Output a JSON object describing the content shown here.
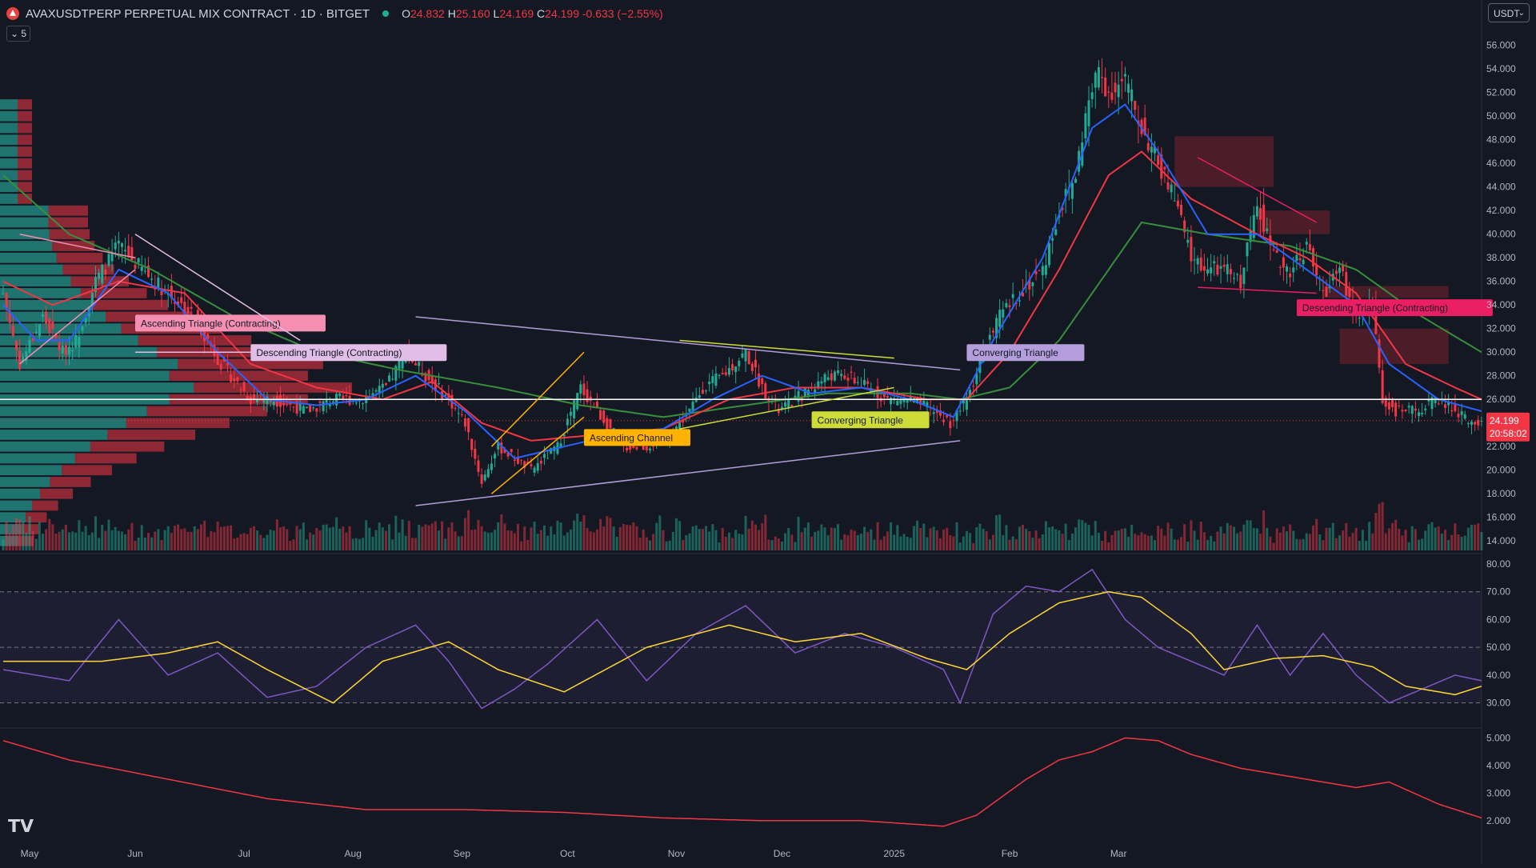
{
  "header": {
    "symbol": "AVAXUSDTPERP PERPETUAL MIX CONTRACT · 1D · BITGET",
    "open_label": "O",
    "open": "24.832",
    "high_label": "H",
    "high": "25.160",
    "low_label": "L",
    "low": "24.169",
    "close_label": "C",
    "close": "24.199",
    "change": "-0.633 (−2.55%)",
    "indicator_toggle": "5"
  },
  "currency": {
    "label": "USDT",
    "icon": "chevron-down-icon"
  },
  "last_price": {
    "value": "24.199",
    "countdown": "20:58:02"
  },
  "colors": {
    "up": "#22ab94",
    "down": "#f23645",
    "ema_fast": "#2962ff",
    "ema_mid": "#f23645",
    "ema_slow": "#388e3c",
    "rsi": "#7e57c2",
    "rsi_ma": "#fdd835"
  },
  "chart_data": {
    "type": "candlestick",
    "price_axis": {
      "ticks": [
        "56.000",
        "54.000",
        "52.000",
        "50.000",
        "48.000",
        "46.000",
        "44.000",
        "42.000",
        "40.000",
        "38.000",
        "36.000",
        "34.000",
        "32.000",
        "30.000",
        "28.000",
        "26.000",
        "24.000",
        "22.000",
        "20.000",
        "18.000",
        "16.000",
        "14.000"
      ],
      "range": [
        13.2,
        57
      ]
    },
    "rsi_axis": {
      "ticks": [
        "80.00",
        "70.00",
        "60.00",
        "50.00",
        "40.00",
        "30.00"
      ],
      "range": [
        23,
        82
      ]
    },
    "third_axis": {
      "ticks": [
        "5.000",
        "4.000",
        "3.000",
        "2.000"
      ],
      "range": [
        1.3,
        5.3
      ]
    },
    "time_axis": [
      "May",
      "Jun",
      "Jul",
      "Aug",
      "Sep",
      "Oct",
      "Nov",
      "Dec",
      "2025",
      "Feb",
      "Mar"
    ],
    "close_anchors": [
      [
        0,
        35
      ],
      [
        5,
        29
      ],
      [
        12,
        33
      ],
      [
        18,
        30
      ],
      [
        22,
        31
      ],
      [
        28,
        36
      ],
      [
        35,
        39
      ],
      [
        42,
        37
      ],
      [
        50,
        35
      ],
      [
        58,
        33
      ],
      [
        66,
        29
      ],
      [
        75,
        26
      ],
      [
        82,
        26
      ],
      [
        92,
        25
      ],
      [
        100,
        26
      ],
      [
        108,
        26
      ],
      [
        116,
        27
      ],
      [
        122,
        30
      ],
      [
        128,
        28
      ],
      [
        135,
        26
      ],
      [
        140,
        24
      ],
      [
        145,
        19
      ],
      [
        150,
        22
      ],
      [
        155,
        21
      ],
      [
        160,
        20
      ],
      [
        168,
        22
      ],
      [
        175,
        27
      ],
      [
        180,
        25
      ],
      [
        188,
        22
      ],
      [
        195,
        22
      ],
      [
        202,
        23
      ],
      [
        208,
        25
      ],
      [
        212,
        27
      ],
      [
        218,
        28
      ],
      [
        225,
        30
      ],
      [
        230,
        27
      ],
      [
        235,
        25
      ],
      [
        240,
        26
      ],
      [
        245,
        27
      ],
      [
        250,
        28
      ],
      [
        255,
        28
      ],
      [
        262,
        27
      ],
      [
        268,
        26
      ],
      [
        275,
        26
      ],
      [
        282,
        25
      ],
      [
        287,
        24
      ],
      [
        292,
        26
      ],
      [
        297,
        30
      ],
      [
        302,
        33
      ],
      [
        308,
        35
      ],
      [
        315,
        37
      ],
      [
        320,
        42
      ],
      [
        325,
        45
      ],
      [
        328,
        50
      ],
      [
        332,
        54
      ],
      [
        335,
        52
      ],
      [
        340,
        53
      ],
      [
        345,
        49
      ],
      [
        350,
        46
      ],
      [
        355,
        43
      ],
      [
        360,
        38
      ],
      [
        365,
        37
      ],
      [
        370,
        37
      ],
      [
        375,
        36
      ],
      [
        380,
        43
      ],
      [
        385,
        38
      ],
      [
        390,
        37
      ],
      [
        395,
        39
      ],
      [
        400,
        35
      ],
      [
        405,
        37
      ],
      [
        410,
        33
      ],
      [
        415,
        34
      ],
      [
        418,
        26
      ],
      [
        422,
        25
      ],
      [
        428,
        25
      ],
      [
        435,
        26
      ],
      [
        440,
        25
      ],
      [
        445,
        24
      ],
      [
        448,
        24.2
      ]
    ],
    "fast_ma_anchors": [
      [
        0,
        34
      ],
      [
        10,
        31
      ],
      [
        20,
        31
      ],
      [
        35,
        37
      ],
      [
        50,
        35
      ],
      [
        65,
        30
      ],
      [
        80,
        26
      ],
      [
        95,
        25.5
      ],
      [
        110,
        26
      ],
      [
        125,
        28
      ],
      [
        140,
        25
      ],
      [
        155,
        21
      ],
      [
        170,
        22
      ],
      [
        185,
        23
      ],
      [
        200,
        23.5
      ],
      [
        215,
        26
      ],
      [
        230,
        28
      ],
      [
        245,
        26.5
      ],
      [
        260,
        27
      ],
      [
        275,
        26
      ],
      [
        288,
        24.5
      ],
      [
        300,
        31
      ],
      [
        315,
        38
      ],
      [
        330,
        49
      ],
      [
        340,
        51
      ],
      [
        350,
        47
      ],
      [
        365,
        40
      ],
      [
        380,
        40
      ],
      [
        395,
        37
      ],
      [
        410,
        34
      ],
      [
        420,
        29
      ],
      [
        435,
        26
      ],
      [
        448,
        25
      ]
    ],
    "mid_ma_anchors": [
      [
        0,
        36
      ],
      [
        15,
        34
      ],
      [
        35,
        36
      ],
      [
        55,
        35
      ],
      [
        75,
        29
      ],
      [
        95,
        27
      ],
      [
        115,
        26
      ],
      [
        130,
        27.5
      ],
      [
        145,
        24
      ],
      [
        160,
        22.5
      ],
      [
        180,
        23
      ],
      [
        200,
        23.5
      ],
      [
        220,
        26
      ],
      [
        240,
        27
      ],
      [
        260,
        27
      ],
      [
        280,
        26
      ],
      [
        292,
        26
      ],
      [
        305,
        30
      ],
      [
        320,
        37
      ],
      [
        335,
        45
      ],
      [
        345,
        47
      ],
      [
        360,
        43
      ],
      [
        380,
        40
      ],
      [
        395,
        38
      ],
      [
        410,
        35
      ],
      [
        425,
        29
      ],
      [
        440,
        27
      ],
      [
        448,
        26
      ]
    ],
    "slow_ma_anchors": [
      [
        0,
        45
      ],
      [
        20,
        40
      ],
      [
        45,
        37
      ],
      [
        70,
        33
      ],
      [
        95,
        30
      ],
      [
        120,
        28.5
      ],
      [
        150,
        27
      ],
      [
        175,
        25.5
      ],
      [
        200,
        24.5
      ],
      [
        225,
        25.5
      ],
      [
        250,
        26.5
      ],
      [
        275,
        26.5
      ],
      [
        290,
        26
      ],
      [
        305,
        27
      ],
      [
        320,
        31
      ],
      [
        335,
        37
      ],
      [
        345,
        41
      ],
      [
        365,
        40
      ],
      [
        390,
        39
      ],
      [
        410,
        37
      ],
      [
        430,
        33
      ],
      [
        448,
        30
      ]
    ],
    "rsi_anchors": [
      [
        0,
        42
      ],
      [
        20,
        38
      ],
      [
        35,
        60
      ],
      [
        50,
        40
      ],
      [
        65,
        48
      ],
      [
        80,
        32
      ],
      [
        95,
        36
      ],
      [
        110,
        50
      ],
      [
        125,
        58
      ],
      [
        135,
        45
      ],
      [
        145,
        28
      ],
      [
        155,
        35
      ],
      [
        165,
        44
      ],
      [
        180,
        60
      ],
      [
        195,
        38
      ],
      [
        210,
        55
      ],
      [
        225,
        65
      ],
      [
        240,
        48
      ],
      [
        255,
        55
      ],
      [
        270,
        50
      ],
      [
        285,
        42
      ],
      [
        290,
        30
      ],
      [
        300,
        62
      ],
      [
        310,
        72
      ],
      [
        320,
        70
      ],
      [
        330,
        78
      ],
      [
        340,
        60
      ],
      [
        350,
        50
      ],
      [
        360,
        45
      ],
      [
        370,
        40
      ],
      [
        380,
        58
      ],
      [
        390,
        40
      ],
      [
        400,
        55
      ],
      [
        410,
        40
      ],
      [
        420,
        30
      ],
      [
        430,
        35
      ],
      [
        440,
        40
      ],
      [
        448,
        38
      ]
    ],
    "rsi_ma_anchors": [
      [
        0,
        45
      ],
      [
        30,
        45
      ],
      [
        50,
        48
      ],
      [
        65,
        52
      ],
      [
        80,
        42
      ],
      [
        100,
        30
      ],
      [
        115,
        45
      ],
      [
        135,
        52
      ],
      [
        150,
        42
      ],
      [
        170,
        34
      ],
      [
        195,
        50
      ],
      [
        220,
        58
      ],
      [
        240,
        52
      ],
      [
        260,
        55
      ],
      [
        280,
        46
      ],
      [
        292,
        42
      ],
      [
        305,
        55
      ],
      [
        320,
        66
      ],
      [
        335,
        70
      ],
      [
        345,
        68
      ],
      [
        360,
        55
      ],
      [
        370,
        42
      ],
      [
        385,
        46
      ],
      [
        400,
        47
      ],
      [
        415,
        43
      ],
      [
        425,
        36
      ],
      [
        440,
        33
      ],
      [
        448,
        36
      ]
    ],
    "third_anchors": [
      [
        0,
        4.9
      ],
      [
        20,
        4.2
      ],
      [
        50,
        3.5
      ],
      [
        80,
        2.8
      ],
      [
        110,
        2.4
      ],
      [
        140,
        2.4
      ],
      [
        170,
        2.3
      ],
      [
        200,
        2.1
      ],
      [
        230,
        2.0
      ],
      [
        260,
        2.0
      ],
      [
        285,
        1.8
      ],
      [
        295,
        2.2
      ],
      [
        310,
        3.5
      ],
      [
        320,
        4.2
      ],
      [
        330,
        4.5
      ],
      [
        340,
        5.0
      ],
      [
        350,
        4.9
      ],
      [
        360,
        4.4
      ],
      [
        375,
        3.9
      ],
      [
        395,
        3.5
      ],
      [
        410,
        3.2
      ],
      [
        420,
        3.4
      ],
      [
        435,
        2.6
      ],
      [
        448,
        2.1
      ]
    ],
    "patterns": [
      {
        "label": "Ascending Triangle (Contracting)",
        "color": "#f48fb1",
        "lines": [
          [
            [
              5,
              40
            ],
            [
              40,
              38
            ]
          ],
          [
            [
              5,
              29
            ],
            [
              40,
              37
            ]
          ]
        ],
        "box": [
          40,
          32.5
        ]
      },
      {
        "label": "Descending Triangle (Contracting)",
        "color": "#e1bee7",
        "lines": [
          [
            [
              40,
              40
            ],
            [
              90,
              31
            ]
          ],
          [
            [
              40,
              30
            ],
            [
              90,
              30
            ]
          ]
        ],
        "box": [
          75,
          30
        ]
      },
      {
        "label": "Converging Triangle",
        "color": "#b39ddb",
        "lines": [
          [
            [
              125,
              33
            ],
            [
              290,
              28.5
            ]
          ],
          [
            [
              125,
              17
            ],
            [
              290,
              22.5
            ]
          ]
        ],
        "box": [
          292,
          30
        ]
      },
      {
        "label": "Ascending Channel",
        "color": "#ffb300",
        "lines": [
          [
            [
              148,
              22
            ],
            [
              176,
              30
            ]
          ],
          [
            [
              148,
              18
            ],
            [
              176,
              24.5
            ]
          ]
        ],
        "box": [
          176,
          22.8
        ]
      },
      {
        "label": "Converging Triangle",
        "color": "#cddc39",
        "lines": [
          [
            [
              205,
              31
            ],
            [
              270,
              29.5
            ]
          ],
          [
            [
              205,
              23.5
            ],
            [
              270,
              27
            ]
          ]
        ],
        "box": [
          245,
          24.3
        ]
      },
      {
        "label": "Descending Triangle (Contracting)",
        "color": "#e91e63",
        "lines": [
          [
            [
              362,
              46.5
            ],
            [
              398,
              41
            ]
          ],
          [
            [
              362,
              35.5
            ],
            [
              398,
              35
            ]
          ]
        ],
        "box": [
          392,
          33.8
        ]
      }
    ],
    "zones": [
      [
        355,
        385,
        44,
        48.3
      ],
      [
        380,
        402,
        40,
        42
      ],
      [
        400,
        438,
        34.6,
        35.6
      ],
      [
        405,
        438,
        29,
        32
      ]
    ],
    "reference_line": 26
  }
}
